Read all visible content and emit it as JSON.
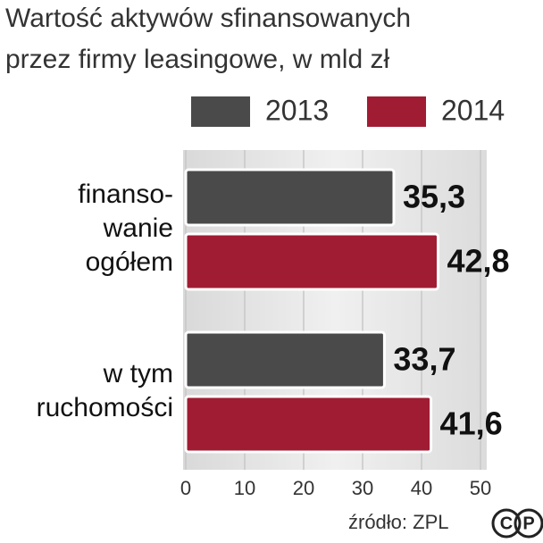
{
  "chart_data": {
    "type": "bar",
    "orientation": "horizontal",
    "title": [
      "Wartość aktywów sfinansowanych",
      "przez firmy leasingowe, w mld zł"
    ],
    "categories": [
      [
        "finanso-",
        "wanie",
        "ogółem"
      ],
      [
        "w tym",
        "ruchomości"
      ]
    ],
    "series": [
      {
        "name": "2013",
        "color": "#4a4a4a",
        "values": [
          35.3,
          33.7
        ],
        "value_labels": [
          "35,3",
          "33,7"
        ]
      },
      {
        "name": "2014",
        "color": "#a01c33",
        "values": [
          42.8,
          41.6
        ],
        "value_labels": [
          "42,8",
          "41,6"
        ]
      }
    ],
    "xlim": [
      0,
      50
    ],
    "xticks": [
      0,
      10,
      20,
      30,
      40,
      50
    ],
    "grid": true,
    "source": "źródło: ZPL",
    "logo": [
      "C",
      "P"
    ]
  }
}
